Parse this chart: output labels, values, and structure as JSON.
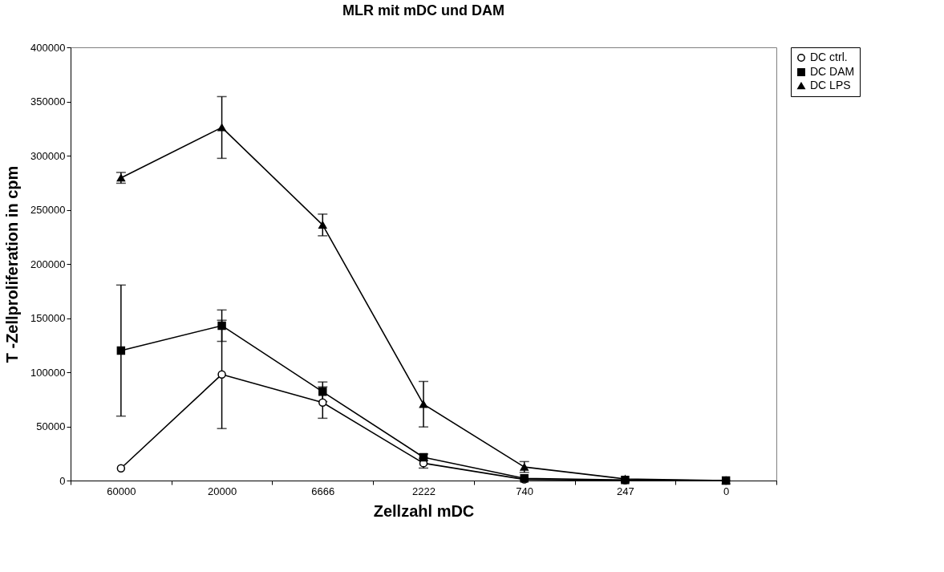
{
  "chart_data": {
    "type": "line",
    "title": "MLR mit mDC und DAM",
    "xlabel": "Zellzahl mDC",
    "ylabel": "T -Zellproliferation in cpm",
    "categories": [
      "60000",
      "20000",
      "6666",
      "2222",
      "740",
      "247",
      "0"
    ],
    "series": [
      {
        "name": "DC ctrl.",
        "color": "#000000",
        "marker": "circle",
        "values": [
          11300,
          98000,
          72000,
          16000,
          1000,
          300,
          0
        ],
        "errors": [
          null,
          50000,
          14500,
          4500,
          null,
          null,
          null
        ]
      },
      {
        "name": "DC DAM",
        "color": "#000000",
        "marker": "square",
        "values": [
          120000,
          143000,
          82000,
          21500,
          2000,
          500,
          0
        ],
        "errors": [
          60500,
          14500,
          9000,
          3000,
          null,
          null,
          null
        ]
      },
      {
        "name": "DC LPS",
        "color": "#000000",
        "marker": "triangle",
        "values": [
          279500,
          326000,
          236000,
          70500,
          12500,
          1500,
          0
        ],
        "errors": [
          5000,
          28500,
          10000,
          21000,
          5000,
          null,
          null
        ]
      }
    ],
    "ylim": [
      0,
      400000
    ],
    "yticks": [
      0,
      50000,
      100000,
      150000,
      200000,
      250000,
      300000,
      350000,
      400000
    ],
    "grid": false,
    "legend": "right",
    "line_style": "solid"
  }
}
